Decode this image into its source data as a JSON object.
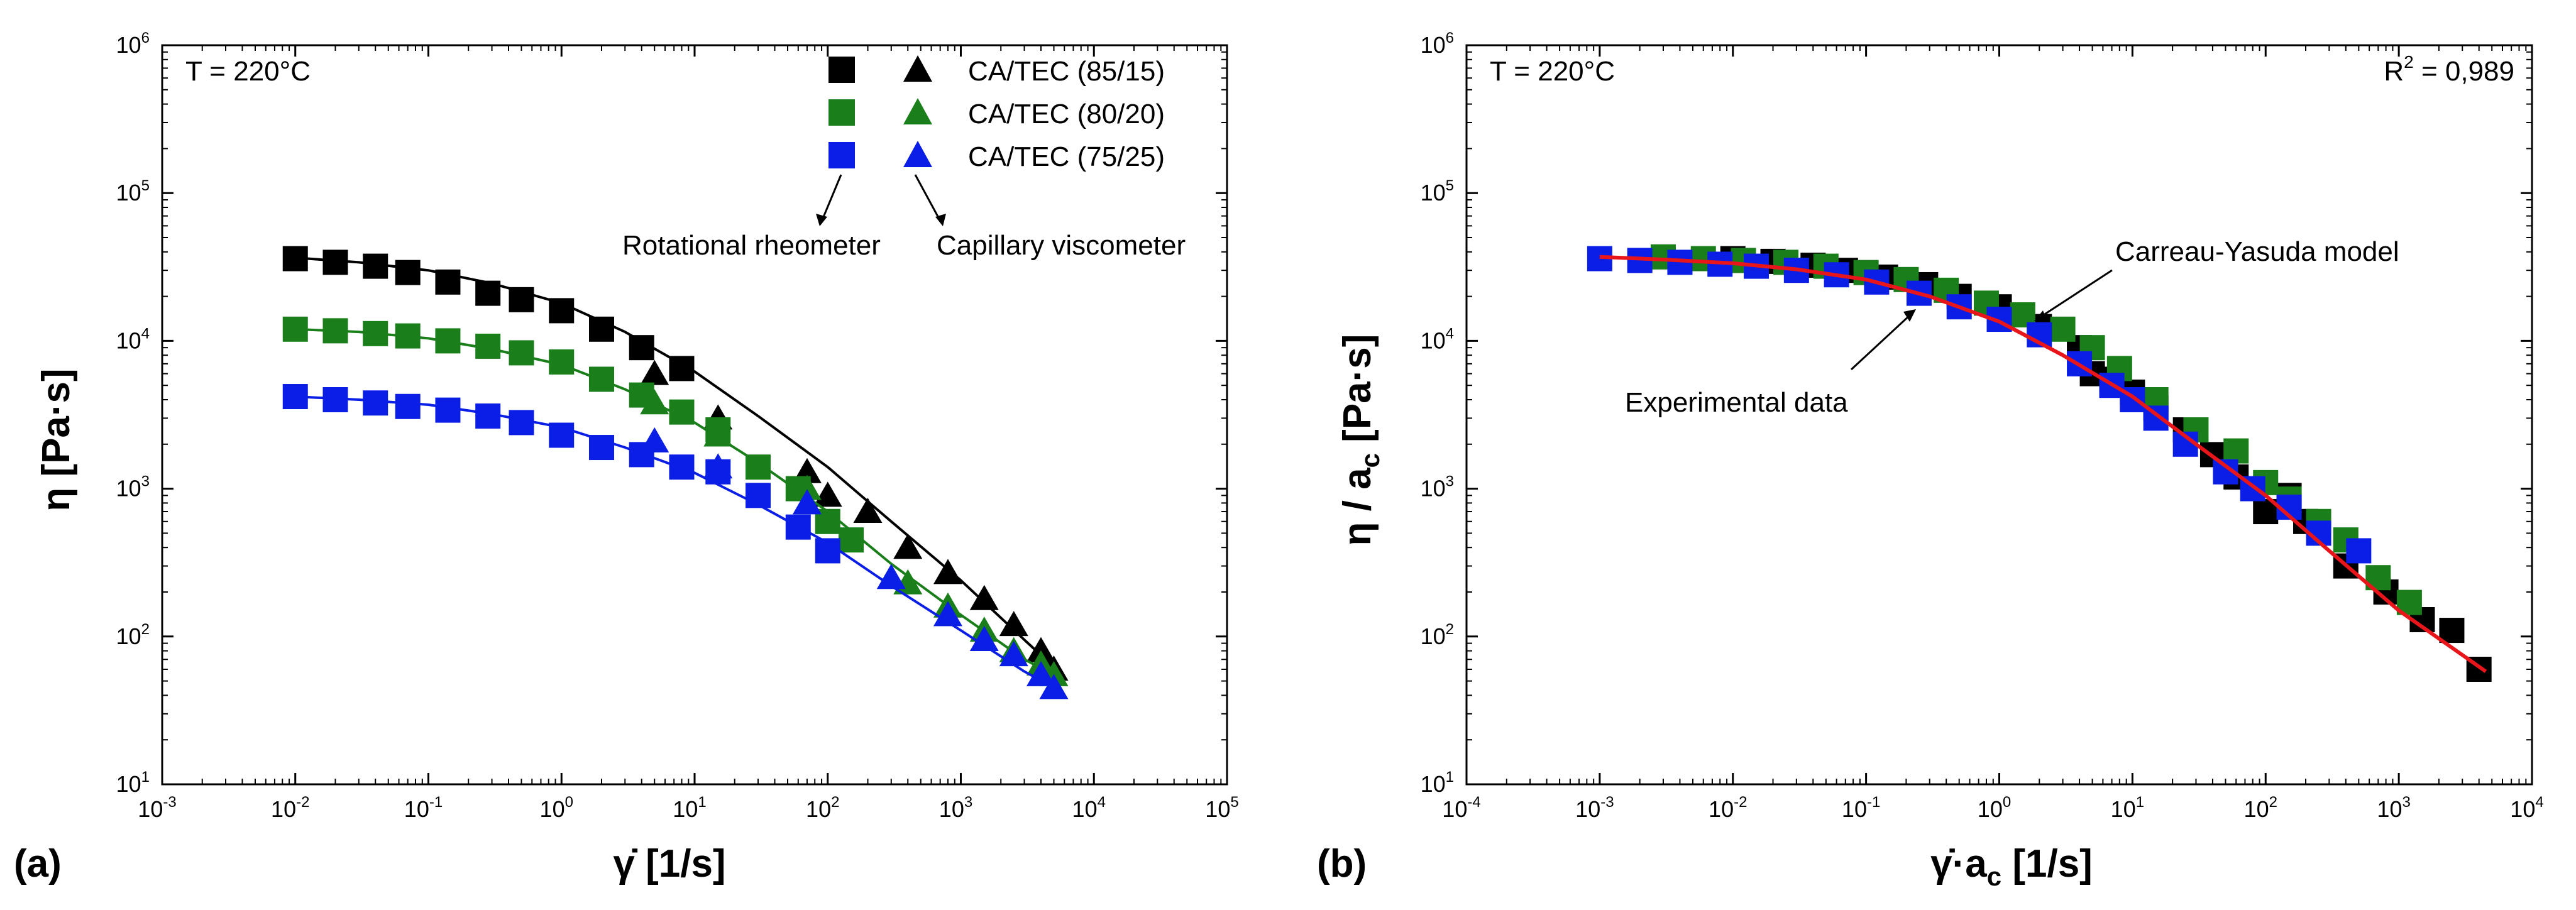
{
  "chart_data": [
    {
      "type": "scatter",
      "panel_label": "(a)",
      "temperature_label": "T = 220°C",
      "xlabel": "γ̇ [1/s]",
      "ylabel": "η [Pa·s]",
      "xscale": "log",
      "yscale": "log",
      "xlim": [
        0.001,
        100000
      ],
      "ylim": [
        10,
        1000000
      ],
      "xticks": [
        {
          "base": "10",
          "exp": "-3"
        },
        {
          "base": "10",
          "exp": "-2"
        },
        {
          "base": "10",
          "exp": "-1"
        },
        {
          "base": "10",
          "exp": "0"
        },
        {
          "base": "10",
          "exp": "1"
        },
        {
          "base": "10",
          "exp": "2"
        },
        {
          "base": "10",
          "exp": "3"
        },
        {
          "base": "10",
          "exp": "4"
        },
        {
          "base": "10",
          "exp": "5"
        }
      ],
      "yticks": [
        {
          "base": "10",
          "exp": "1"
        },
        {
          "base": "10",
          "exp": "2"
        },
        {
          "base": "10",
          "exp": "3"
        },
        {
          "base": "10",
          "exp": "4"
        },
        {
          "base": "10",
          "exp": "5"
        },
        {
          "base": "10",
          "exp": "6"
        }
      ],
      "legend": {
        "placement": "top-right",
        "entries": [
          "CA/TEC (85/15)",
          "CA/TEC (80/20)",
          "CA/TEC (75/25)"
        ],
        "rotational_label": "Rotational rheometer",
        "capillary_label": "Capillary viscometer"
      },
      "series": [
        {
          "name": "CA/TEC (85/15)",
          "color": "#000000",
          "rotational": {
            "x": [
              0.01,
              0.02,
              0.04,
              0.07,
              0.14,
              0.28,
              0.5,
              1,
              2,
              4,
              8
            ],
            "y": [
              36000,
              34000,
              32000,
              29000,
              25000,
              21000,
              19000,
              16000,
              12000,
              9000,
              6500
            ]
          },
          "capillary": {
            "x": [
              5,
              15,
              70,
              100,
              200,
              400,
              800,
              1500,
              2500,
              4000,
              5000
            ],
            "y": [
              6000,
              3000,
              1300,
              900,
              700,
              400,
              270,
              180,
              120,
              80,
              60
            ]
          },
          "fit": {
            "x": [
              0.01,
              0.03,
              0.1,
              0.3,
              1,
              3,
              10,
              30,
              100,
              300,
              1000,
              3000,
              5000
            ],
            "y": [
              36500,
              34000,
              30000,
              24500,
              18000,
              11500,
              6200,
              3100,
              1400,
              600,
              240,
              95,
              62
            ]
          }
        },
        {
          "name": "CA/TEC (80/20)",
          "color": "#1a7f1a",
          "rotational": {
            "x": [
              0.01,
              0.02,
              0.04,
              0.07,
              0.14,
              0.28,
              0.5,
              1,
              2,
              4,
              8,
              15,
              30,
              60,
              100,
              150
            ],
            "y": [
              12000,
              11700,
              11200,
              10800,
              10000,
              9200,
              8300,
              7200,
              5500,
              4300,
              3300,
              2500,
              1400,
              1000,
              600,
              450
            ]
          },
          "capillary": {
            "x": [
              5,
              15,
              70,
              400,
              800,
              1500,
              2500,
              4000,
              5000
            ],
            "y": [
              3800,
              2300,
              1000,
              230,
              160,
              110,
              80,
              65,
              55
            ]
          },
          "fit": {
            "x": [
              0.01,
              0.03,
              0.1,
              0.3,
              1,
              3,
              10,
              30,
              100,
              300,
              1000,
              3000,
              5000
            ],
            "y": [
              12000,
              11500,
              10400,
              8800,
              6900,
              4700,
              2800,
              1500,
              700,
              310,
              140,
              70,
              55
            ]
          }
        },
        {
          "name": "CA/TEC (75/25)",
          "color": "#0a1ee6",
          "rotational": {
            "x": [
              0.01,
              0.02,
              0.04,
              0.07,
              0.14,
              0.28,
              0.5,
              1,
              2,
              4,
              8,
              15,
              30,
              60,
              100
            ],
            "y": [
              4200,
              4000,
              3800,
              3600,
              3400,
              3100,
              2800,
              2300,
              1900,
              1700,
              1400,
              1300,
              900,
              550,
              380
            ]
          },
          "capillary": {
            "x": [
              5,
              15,
              70,
              300,
              800,
              1500,
              2500,
              4000,
              5000
            ],
            "y": [
              2100,
              1400,
              800,
              250,
              140,
              95,
              75,
              55,
              45
            ]
          },
          "fit": {
            "x": [
              0.01,
              0.03,
              0.1,
              0.3,
              1,
              3,
              10,
              30,
              100,
              300,
              1000,
              3000,
              5000
            ],
            "y": [
              4200,
              4000,
              3700,
              3200,
              2600,
              1900,
              1280,
              780,
              430,
              220,
              110,
              58,
              45
            ]
          }
        }
      ]
    },
    {
      "type": "scatter",
      "panel_label": "(b)",
      "temperature_label": "T = 220°C",
      "r2_label": "R",
      "r2_exp": "2",
      "r2_value": " = 0,989",
      "xlabel": "γ̇·a",
      "xlabel_sub": "c",
      "xlabel_unit": " [1/s]",
      "ylabel": "η / a",
      "ylabel_sub": "c",
      "ylabel_unit": " [Pa·s]",
      "xscale": "log",
      "yscale": "log",
      "xlim": [
        0.0001,
        10000
      ],
      "ylim": [
        10,
        1000000
      ],
      "xticks": [
        {
          "base": "10",
          "exp": "-4"
        },
        {
          "base": "10",
          "exp": "-3"
        },
        {
          "base": "10",
          "exp": "-2"
        },
        {
          "base": "10",
          "exp": "-1"
        },
        {
          "base": "10",
          "exp": "0"
        },
        {
          "base": "10",
          "exp": "1"
        },
        {
          "base": "10",
          "exp": "2"
        },
        {
          "base": "10",
          "exp": "3"
        },
        {
          "base": "10",
          "exp": "4"
        }
      ],
      "yticks": [
        {
          "base": "10",
          "exp": "1"
        },
        {
          "base": "10",
          "exp": "2"
        },
        {
          "base": "10",
          "exp": "3"
        },
        {
          "base": "10",
          "exp": "4"
        },
        {
          "base": "10",
          "exp": "5"
        },
        {
          "base": "10",
          "exp": "6"
        }
      ],
      "annotations": {
        "model": "Carreau-Yasuda model",
        "data": "Experimental data"
      },
      "series": [
        {
          "name": "CA/TEC (85/15)",
          "color": "#000000",
          "x": [
            0.01,
            0.02,
            0.04,
            0.07,
            0.14,
            0.28,
            0.5,
            1,
            2,
            4,
            5,
            7,
            10,
            15,
            25,
            40,
            60,
            100,
            150,
            200,
            400,
            800,
            1500,
            2500,
            4000
          ],
          "y": [
            36000,
            34500,
            32500,
            30000,
            27000,
            24000,
            20000,
            17000,
            12500,
            9000,
            6000,
            5500,
            4500,
            3500,
            2500,
            1700,
            1200,
            700,
            900,
            600,
            300,
            200,
            130,
            110,
            60
          ]
        },
        {
          "name": "CA/TEC (80/20)",
          "color": "#1a7f1a",
          "x": [
            0.003,
            0.006,
            0.012,
            0.025,
            0.05,
            0.1,
            0.2,
            0.4,
            0.8,
            1.5,
            3,
            5,
            8,
            15,
            30,
            60,
            100,
            150,
            250,
            400,
            700,
            1200
          ],
          "y": [
            37000,
            36000,
            35000,
            34000,
            32000,
            29000,
            26000,
            22000,
            18000,
            15000,
            12000,
            9000,
            6500,
            4000,
            2500,
            1800,
            1100,
            850,
            600,
            450,
            250,
            170
          ]
        },
        {
          "name": "CA/TEC (75/25)",
          "color": "#0a1ee6",
          "x": [
            0.001,
            0.002,
            0.004,
            0.008,
            0.015,
            0.03,
            0.06,
            0.12,
            0.25,
            0.5,
            1,
            2,
            4,
            7,
            10,
            15,
            25,
            50,
            80,
            150,
            250,
            500
          ],
          "y": [
            36000,
            35000,
            34000,
            33000,
            32000,
            30000,
            28000,
            25000,
            21000,
            17000,
            14000,
            11000,
            7000,
            5000,
            4000,
            3000,
            2000,
            1300,
            1000,
            750,
            500,
            380
          ]
        }
      ],
      "fit": {
        "x": [
          0.001,
          0.003,
          0.01,
          0.03,
          0.1,
          0.3,
          1,
          3,
          10,
          30,
          100,
          300,
          1000,
          3000,
          4500
        ],
        "y": [
          37000,
          35500,
          33500,
          30500,
          26000,
          20000,
          13500,
          8000,
          4200,
          2000,
          900,
          380,
          150,
          75,
          58
        ]
      }
    }
  ]
}
